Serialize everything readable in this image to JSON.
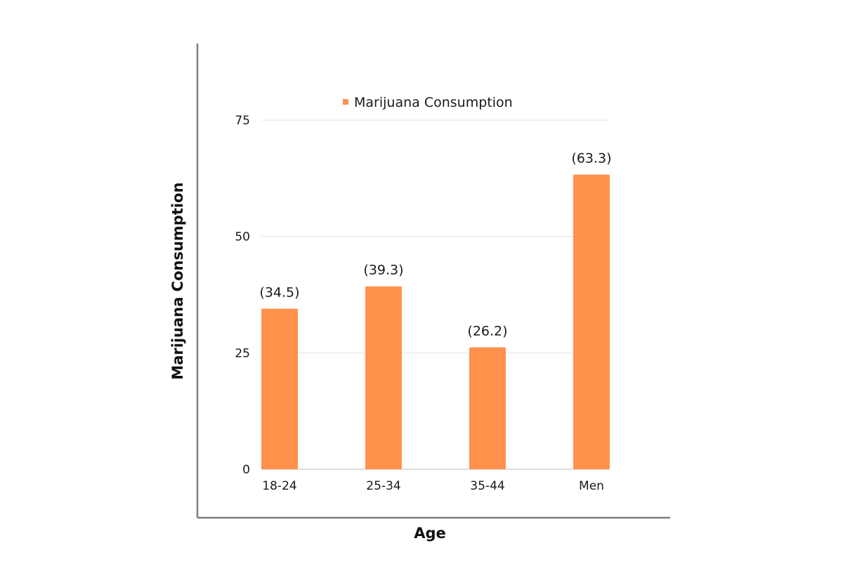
{
  "chart_data": {
    "type": "bar",
    "xlabel": "Age",
    "ylabel": "Marijuana Consumption",
    "categories": [
      "18-24",
      "25-34",
      "35-44",
      "Men"
    ],
    "series": [
      {
        "name": "Marijuana Consumption",
        "values": [
          34.5,
          39.3,
          26.2,
          63.3
        ],
        "data_labels": [
          "(34.5)",
          "(39.3)",
          "(26.2)",
          "(63.3)"
        ],
        "color": "#FF914D"
      }
    ],
    "ylim": [
      0,
      75
    ],
    "yticks": [
      0,
      25,
      50,
      75
    ],
    "grid": true,
    "legend_position": "top-center"
  },
  "colors": {
    "bar": "#FF914D",
    "grid": "#e2e2e2",
    "axis": "#7f7f7f",
    "baseline": "#bdbdbd"
  }
}
